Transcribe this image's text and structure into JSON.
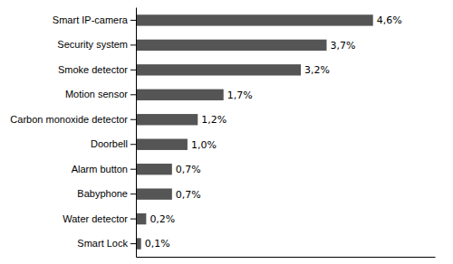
{
  "chart_data": {
    "type": "bar",
    "orientation": "horizontal",
    "categories": [
      "Smart Lock",
      "Water detector",
      "Babyphone",
      "Alarm button",
      "Doorbell",
      "Carbon monoxide detector",
      "Motion sensor",
      "Smoke detector",
      "Security system",
      "Smart IP-camera"
    ],
    "values": [
      0.1,
      0.2,
      0.7,
      0.7,
      1.0,
      1.2,
      1.7,
      3.2,
      3.7,
      4.6
    ],
    "value_labels": [
      "0,1%",
      "0,2%",
      "0,7%",
      "0,7%",
      "1,0%",
      "1,2%",
      "1,7%",
      "3,2%",
      "3,7%",
      "4,6%"
    ],
    "data_labels": true,
    "color": "#555555",
    "xlim": [
      0,
      5.8
    ],
    "tick_labels": "y",
    "grid": false
  }
}
